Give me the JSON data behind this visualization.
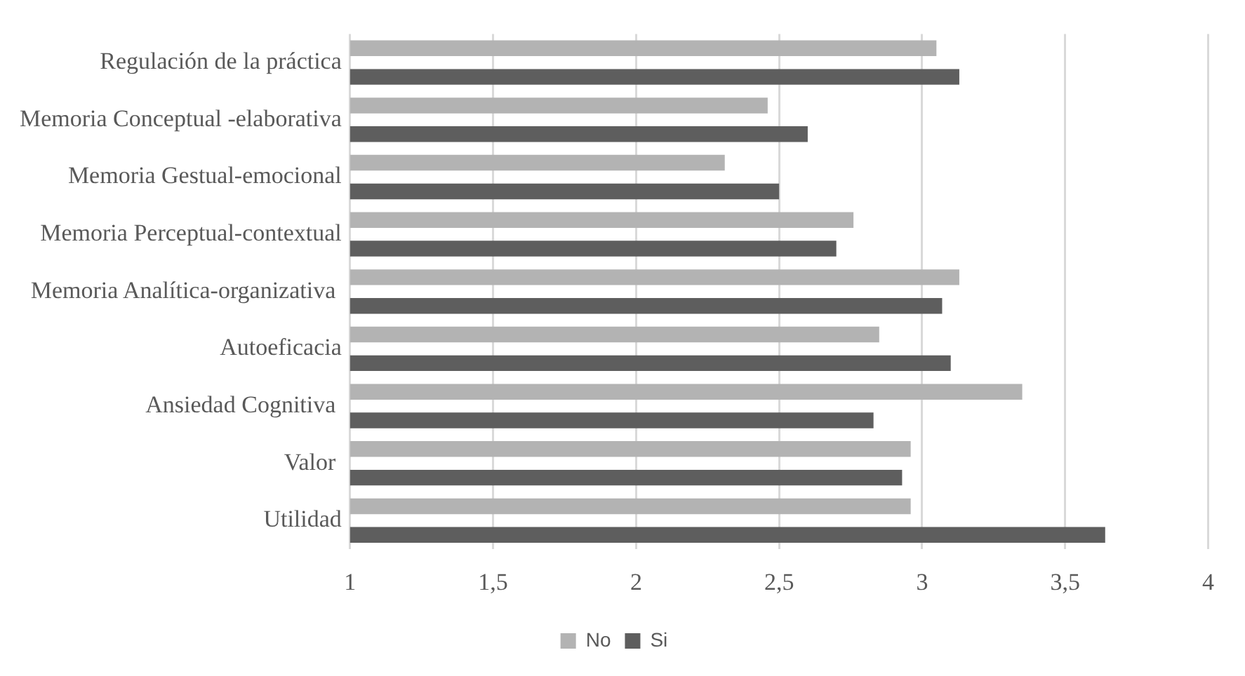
{
  "chart_data": {
    "type": "bar",
    "orientation": "horizontal",
    "categories": [
      "Regulación de la práctica",
      "Memoria Conceptual -elaborativa",
      "Memoria Gestual-emocional",
      "Memoria Perceptual-contextual",
      "Memoria Analítica-organizativa ",
      "Autoeficacia",
      "Ansiedad Cognitiva ",
      "Valor ",
      "Utilidad"
    ],
    "series": [
      {
        "name": "No",
        "color": "#b3b3b3",
        "values": [
          3.05,
          2.46,
          2.31,
          2.76,
          3.13,
          2.85,
          3.35,
          2.96,
          2.96
        ]
      },
      {
        "name": "Si",
        "color": "#5e5e5e",
        "values": [
          3.13,
          2.6,
          2.5,
          2.7,
          3.07,
          3.1,
          2.83,
          2.93,
          3.64
        ]
      }
    ],
    "xlim": [
      1,
      4
    ],
    "xticks": [
      1,
      {
        "value": 1.5,
        "label": "1,5"
      },
      2,
      {
        "value": 2.5,
        "label": "2,5"
      },
      3,
      {
        "value": 3.5,
        "label": "3,5"
      },
      4
    ],
    "grid": "x",
    "legend": "bottom"
  }
}
